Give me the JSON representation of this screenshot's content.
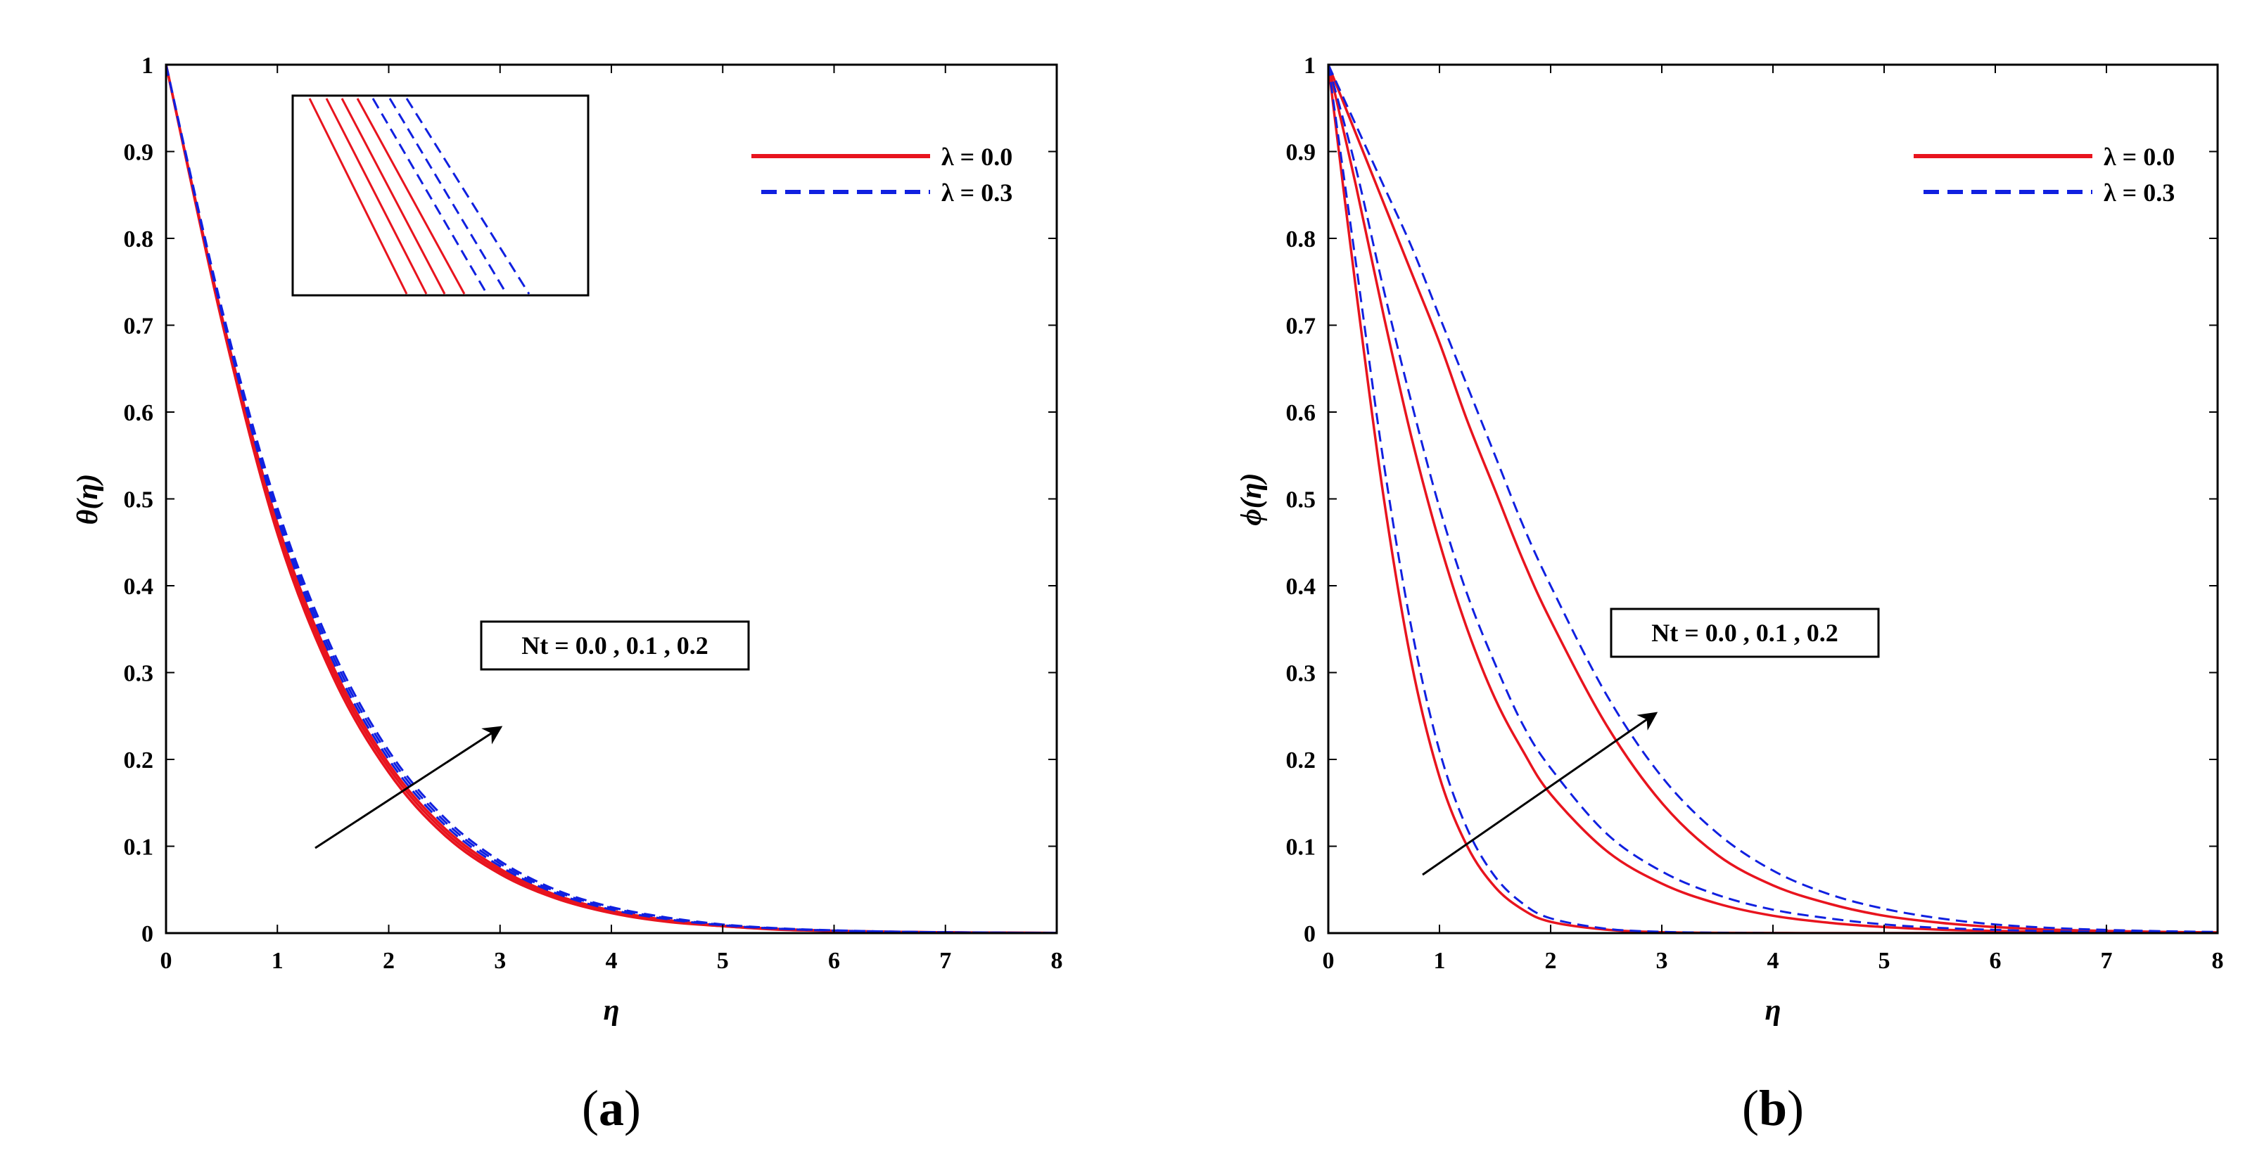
{
  "chart_data": [
    {
      "type": "line",
      "panel_caption_open": "(",
      "panel_caption_letter": "a",
      "panel_caption_close": ")",
      "xlabel": "η",
      "ylabel": "θ(η)",
      "xlim": [
        0,
        8
      ],
      "ylim": [
        0,
        1
      ],
      "xticks": [
        "0",
        "1",
        "2",
        "3",
        "4",
        "5",
        "6",
        "7",
        "8"
      ],
      "yticks": [
        "0",
        "0.1",
        "0.2",
        "0.3",
        "0.4",
        "0.5",
        "0.6",
        "0.7",
        "0.8",
        "0.9",
        "1"
      ],
      "legend": [
        {
          "label": "λ = 0.0",
          "color": "#e8141e",
          "style": "solid"
        },
        {
          "label": "λ = 0.3",
          "color": "#1020e0",
          "style": "dashed"
        }
      ],
      "annotation": "Nt = 0.0 , 0.1 , 0.2",
      "x": [
        0,
        0.5,
        1,
        1.5,
        2,
        2.5,
        3,
        3.5,
        4,
        4.5,
        5,
        5.5,
        6,
        6.5,
        7,
        7.5,
        8
      ],
      "series": [
        {
          "name": "λ = 0.0, Nt = 0.0",
          "color": "#e8141e",
          "style": "solid",
          "values": [
            1,
            0.705,
            0.46,
            0.295,
            0.185,
            0.113,
            0.068,
            0.04,
            0.023,
            0.013,
            0.008,
            0.004,
            0.0025,
            0.0014,
            0.0008,
            0.0004,
            0.0002
          ]
        },
        {
          "name": "λ = 0.0, Nt = 0.1",
          "color": "#e8141e",
          "style": "solid",
          "values": [
            1,
            0.708,
            0.466,
            0.301,
            0.19,
            0.117,
            0.071,
            0.042,
            0.024,
            0.014,
            0.008,
            0.0045,
            0.0026,
            0.0015,
            0.0008,
            0.0004,
            0.0002
          ]
        },
        {
          "name": "λ = 0.0, Nt = 0.2",
          "color": "#e8141e",
          "style": "solid",
          "values": [
            1,
            0.711,
            0.472,
            0.307,
            0.195,
            0.121,
            0.074,
            0.044,
            0.026,
            0.015,
            0.0085,
            0.0048,
            0.0027,
            0.0015,
            0.0009,
            0.0005,
            0.0002
          ]
        },
        {
          "name": "λ = 0.3, Nt = 0.0",
          "color": "#1020e0",
          "style": "dashed",
          "values": [
            1,
            0.714,
            0.478,
            0.313,
            0.2,
            0.125,
            0.077,
            0.046,
            0.027,
            0.016,
            0.009,
            0.005,
            0.0028,
            0.0016,
            0.0009,
            0.0005,
            0.0002
          ]
        },
        {
          "name": "λ = 0.3, Nt = 0.1",
          "color": "#1020e0",
          "style": "dashed",
          "values": [
            1,
            0.717,
            0.484,
            0.319,
            0.205,
            0.129,
            0.08,
            0.048,
            0.029,
            0.017,
            0.0095,
            0.0053,
            0.003,
            0.0017,
            0.001,
            0.0005,
            0.0002
          ]
        },
        {
          "name": "λ = 0.3, Nt = 0.2",
          "color": "#1020e0",
          "style": "dashed",
          "values": [
            1,
            0.72,
            0.49,
            0.325,
            0.21,
            0.133,
            0.083,
            0.05,
            0.03,
            0.018,
            0.01,
            0.0056,
            0.0032,
            0.0018,
            0.001,
            0.0005,
            0.0002
          ]
        }
      ]
    },
    {
      "type": "line",
      "panel_caption_open": "(",
      "panel_caption_letter": "b",
      "panel_caption_close": ")",
      "xlabel": "η",
      "ylabel": "ϕ(η)",
      "xlim": [
        0,
        8
      ],
      "ylim": [
        0,
        1
      ],
      "xticks": [
        "0",
        "1",
        "2",
        "3",
        "4",
        "5",
        "6",
        "7",
        "8"
      ],
      "yticks": [
        "0",
        "0.1",
        "0.2",
        "0.3",
        "0.4",
        "0.5",
        "0.6",
        "0.7",
        "0.8",
        "0.9",
        "1"
      ],
      "legend": [
        {
          "label": "λ = 0.0",
          "color": "#e8141e",
          "style": "solid"
        },
        {
          "label": "λ = 0.3",
          "color": "#1020e0",
          "style": "dashed"
        }
      ],
      "annotation": "Nt = 0.0 , 0.1 , 0.2",
      "x": [
        0,
        0.25,
        0.5,
        0.75,
        1,
        1.25,
        1.5,
        1.75,
        2,
        2.5,
        3,
        3.5,
        4,
        4.5,
        5,
        5.5,
        6,
        6.5,
        7,
        7.5,
        8
      ],
      "series": [
        {
          "name": "λ = 0.0, Nt = 0.0",
          "color": "#e8141e",
          "style": "solid",
          "values": [
            1,
            0.74,
            0.5,
            0.31,
            0.18,
            0.1,
            0.053,
            0.027,
            0.013,
            0.004,
            0.001,
            0.0003,
            0.0001,
            0,
            0,
            0,
            0,
            0,
            0,
            0,
            0
          ]
        },
        {
          "name": "λ = 0.0, Nt = 0.1",
          "color": "#e8141e",
          "style": "solid",
          "values": [
            1,
            0.86,
            0.71,
            0.57,
            0.45,
            0.35,
            0.27,
            0.21,
            0.16,
            0.095,
            0.057,
            0.034,
            0.02,
            0.012,
            0.007,
            0.004,
            0.0025,
            0.0015,
            0.0009,
            0.0005,
            0.0003
          ]
        },
        {
          "name": "λ = 0.0, Nt = 0.2",
          "color": "#e8141e",
          "style": "solid",
          "values": [
            1,
            0.92,
            0.84,
            0.76,
            0.68,
            0.59,
            0.51,
            0.43,
            0.36,
            0.24,
            0.15,
            0.09,
            0.055,
            0.034,
            0.02,
            0.012,
            0.007,
            0.004,
            0.0025,
            0.0014,
            0.0008
          ]
        },
        {
          "name": "λ = 0.3, Nt = 0.0",
          "color": "#1020e0",
          "style": "dashed",
          "values": [
            1,
            0.77,
            0.54,
            0.35,
            0.21,
            0.12,
            0.065,
            0.034,
            0.017,
            0.005,
            0.0015,
            0.0004,
            0.0001,
            0,
            0,
            0,
            0,
            0,
            0,
            0,
            0
          ]
        },
        {
          "name": "λ = 0.3, Nt = 0.1",
          "color": "#1020e0",
          "style": "dashed",
          "values": [
            1,
            0.88,
            0.74,
            0.61,
            0.49,
            0.39,
            0.31,
            0.24,
            0.19,
            0.115,
            0.071,
            0.044,
            0.027,
            0.017,
            0.01,
            0.006,
            0.0037,
            0.0022,
            0.0013,
            0.0008,
            0.0005
          ]
        },
        {
          "name": "λ = 0.3, Nt = 0.2",
          "color": "#1020e0",
          "style": "dashed",
          "values": [
            1,
            0.93,
            0.86,
            0.79,
            0.71,
            0.63,
            0.55,
            0.47,
            0.4,
            0.275,
            0.18,
            0.115,
            0.072,
            0.045,
            0.028,
            0.017,
            0.01,
            0.006,
            0.0037,
            0.0022,
            0.0013
          ]
        }
      ]
    }
  ]
}
